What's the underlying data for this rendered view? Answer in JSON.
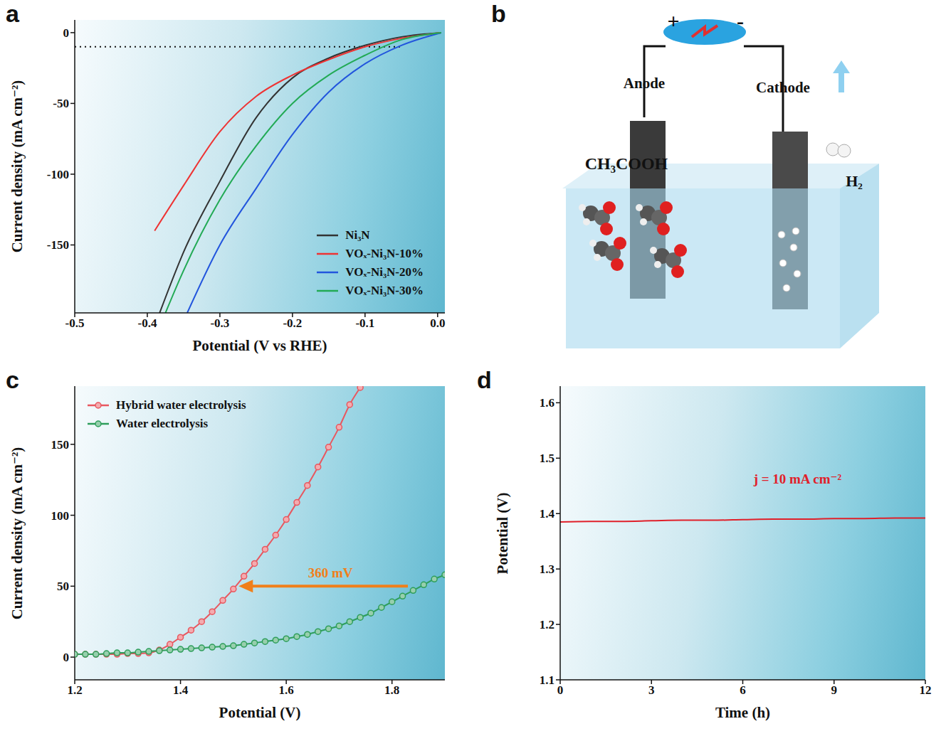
{
  "chart_data": [
    {
      "panel_label": "a",
      "type": "line",
      "x_label": "Potential (V vs RHE)",
      "y_label": "Current density (mA cm⁻²)",
      "xlim": [
        -0.5,
        0.01
      ],
      "xticks": [
        -0.5,
        -0.4,
        -0.3,
        -0.2,
        -0.1,
        {
          "value": 0,
          "label": "0.0"
        }
      ],
      "ylim": [
        -198,
        9
      ],
      "yticks": [
        -150,
        -100,
        -50,
        0
      ],
      "legend": "lower right",
      "hline": {
        "y": -10,
        "x": [
          -0.5,
          -0.05
        ],
        "line_style": "dotted"
      },
      "series": [
        {
          "name": "Ni₃N",
          "color": "#333333",
          "x": [
            0.005,
            -0.05,
            -0.1,
            -0.15,
            -0.2,
            -0.235,
            -0.25,
            -0.3,
            -0.35,
            -0.383
          ],
          "values": [
            0,
            -3,
            -9,
            -18,
            -32,
            -50,
            -60,
            -105,
            -155,
            -198
          ]
        },
        {
          "name": "VOₓ-Ni₃N-10%",
          "color": "#ee3333",
          "x": [
            0.005,
            -0.05,
            -0.1,
            -0.15,
            -0.2,
            -0.25,
            -0.3,
            -0.35,
            -0.39
          ],
          "values": [
            0,
            -4,
            -10,
            -19,
            -30,
            -45,
            -70,
            -108,
            -140
          ]
        },
        {
          "name": "VOₓ-Ni₃N-20%",
          "color": "#2255dd",
          "x": [
            0.005,
            -0.05,
            -0.1,
            -0.15,
            -0.2,
            -0.25,
            -0.3,
            -0.345
          ],
          "values": [
            0,
            -9,
            -22,
            -42,
            -72,
            -110,
            -150,
            -198
          ]
        },
        {
          "name": "VOₓ-Ni₃N-30%",
          "color": "#22aa55",
          "x": [
            0.005,
            -0.05,
            -0.1,
            -0.15,
            -0.2,
            -0.25,
            -0.3,
            -0.35,
            -0.375
          ],
          "values": [
            0,
            -5,
            -16,
            -30,
            -50,
            -80,
            -118,
            -168,
            -198
          ]
        }
      ]
    },
    {
      "panel_label": "b",
      "type": "diagram",
      "polarity": [
        "+",
        "-"
      ],
      "anode": "Anode",
      "cathode": "Cathode",
      "reactant": "CH₃COOH",
      "product": "H₂"
    },
    {
      "panel_label": "c",
      "type": "line",
      "x_label": "Potential (V)",
      "y_label": "Current density (mA cm⁻²)",
      "xlim": [
        1.2,
        1.9
      ],
      "xticks": [
        1.2,
        1.4,
        1.6,
        1.8
      ],
      "ylim": [
        -16,
        191
      ],
      "yticks": [
        0,
        50,
        100,
        150
      ],
      "legend": "upper left",
      "annotations": [
        {
          "text": "360 mV",
          "x": [
            1.83,
            1.51
          ],
          "y": 50,
          "color": "#f07f1a"
        }
      ],
      "series": [
        {
          "name": "Hybrid water electrolysis",
          "color": "#e8575f",
          "marker": "circle",
          "x": [
            1.2,
            1.22,
            1.24,
            1.26,
            1.28,
            1.3,
            1.32,
            1.34,
            1.36,
            1.38,
            1.4,
            1.42,
            1.44,
            1.46,
            1.48,
            1.5,
            1.52,
            1.54,
            1.56,
            1.58,
            1.6,
            1.62,
            1.64,
            1.66,
            1.68,
            1.7,
            1.72,
            1.74
          ],
          "values": [
            2,
            2,
            2,
            2,
            2,
            2.5,
            2.5,
            3,
            5,
            9,
            14,
            19,
            25,
            32,
            40,
            48,
            57,
            66,
            76,
            86,
            97,
            109,
            121,
            134,
            148,
            162,
            178,
            190
          ]
        },
        {
          "name": "Water electrolysis",
          "color": "#2e9e5b",
          "marker": "circle",
          "x": [
            1.2,
            1.22,
            1.24,
            1.26,
            1.28,
            1.3,
            1.32,
            1.34,
            1.36,
            1.38,
            1.4,
            1.42,
            1.44,
            1.46,
            1.48,
            1.5,
            1.52,
            1.54,
            1.56,
            1.58,
            1.6,
            1.62,
            1.64,
            1.66,
            1.68,
            1.7,
            1.72,
            1.74,
            1.76,
            1.78,
            1.8,
            1.82,
            1.84,
            1.86,
            1.88,
            1.9
          ],
          "values": [
            2,
            2,
            2,
            2.5,
            3,
            3,
            3.5,
            4,
            4.5,
            5,
            5.5,
            6,
            6.5,
            7,
            7.5,
            8,
            9,
            10,
            11,
            12,
            13,
            14.5,
            16,
            18,
            20,
            22,
            25,
            28,
            31,
            35,
            39,
            43,
            47,
            51,
            55,
            58
          ]
        }
      ]
    },
    {
      "panel_label": "d",
      "type": "line",
      "x_label": "Time (h)",
      "y_label": "Potential (V)",
      "xlim": [
        0,
        12
      ],
      "xticks": [
        0,
        3,
        6,
        9,
        12
      ],
      "ylim": [
        1.1,
        1.63
      ],
      "yticks": [
        1.1,
        1.2,
        1.3,
        1.4,
        1.5,
        1.6
      ],
      "annotations": [
        {
          "text": "j = 10 mA cm⁻²",
          "x": 7.8,
          "y": 1.46,
          "color": "#e0202a"
        }
      ],
      "series": [
        {
          "color": "#e0202a",
          "x": [
            0,
            1,
            2,
            3,
            4,
            5,
            6,
            7,
            8,
            9,
            10,
            11,
            12
          ],
          "values": [
            1.385,
            1.386,
            1.386,
            1.387,
            1.388,
            1.388,
            1.389,
            1.39,
            1.39,
            1.391,
            1.391,
            1.392,
            1.392
          ]
        }
      ]
    }
  ]
}
